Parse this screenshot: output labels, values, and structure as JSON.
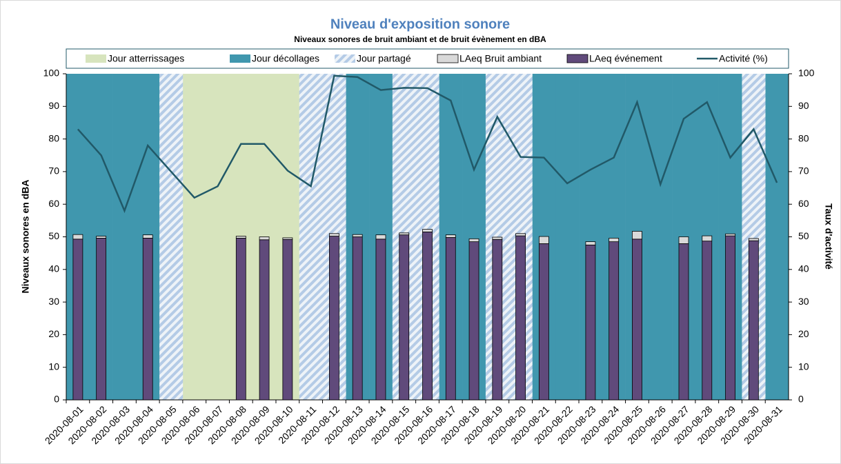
{
  "chart_data": {
    "type": "bar",
    "title": "Niveau d'exposition sonore",
    "subtitle": "Niveaux sonores de bruit ambiant et de bruit évènement en dBA",
    "y_label": "Niveaux sonores en dBA",
    "y2_label": "Taux d'activité",
    "categories": [
      "2020-08-01",
      "2020-08-02",
      "2020-08-03",
      "2020-08-04",
      "2020-08-05",
      "2020-08-06",
      "2020-08-07",
      "2020-08-08",
      "2020-08-09",
      "2020-08-10",
      "2020-08-11",
      "2020-08-12",
      "2020-08-13",
      "2020-08-14",
      "2020-08-15",
      "2020-08-16",
      "2020-08-17",
      "2020-08-18",
      "2020-08-19",
      "2020-08-20",
      "2020-08-21",
      "2020-08-22",
      "2020-08-23",
      "2020-08-24",
      "2020-08-25",
      "2020-08-26",
      "2020-08-27",
      "2020-08-28",
      "2020-08-29",
      "2020-08-30",
      "2020-08-31"
    ],
    "ylim": [
      0,
      100
    ],
    "yticks": [
      0,
      10,
      20,
      30,
      40,
      50,
      60,
      70,
      80,
      90,
      100
    ],
    "y2lim": [
      0,
      100
    ],
    "y2ticks": [
      0,
      10,
      20,
      30,
      40,
      50,
      60,
      70,
      80,
      90,
      100
    ],
    "series": [
      {
        "name": "Jour atterrissages",
        "role": "background",
        "color": "#d7e4bd",
        "values": [
          null,
          null,
          null,
          null,
          null,
          100,
          100,
          100,
          100,
          100,
          null,
          null,
          null,
          null,
          null,
          null,
          null,
          null,
          null,
          null,
          null,
          null,
          null,
          null,
          null,
          null,
          null,
          null,
          null,
          null,
          null
        ]
      },
      {
        "name": "Jour décollages",
        "role": "background",
        "color": "#4097ae",
        "values": [
          100,
          100,
          100,
          100,
          null,
          null,
          null,
          null,
          null,
          null,
          null,
          null,
          100,
          100,
          null,
          null,
          100,
          100,
          null,
          null,
          100,
          100,
          100,
          100,
          100,
          100,
          100,
          100,
          100,
          null,
          100
        ]
      },
      {
        "name": "Jour partagé",
        "role": "background",
        "pattern": "stripes",
        "color": "#b4cbe6",
        "values": [
          null,
          null,
          null,
          null,
          100,
          null,
          null,
          null,
          null,
          null,
          100,
          100,
          null,
          null,
          100,
          100,
          null,
          null,
          100,
          100,
          null,
          null,
          null,
          null,
          null,
          null,
          null,
          null,
          null,
          100,
          null
        ]
      },
      {
        "name": "LAeq Bruit ambiant",
        "role": "stack",
        "color": "#d9d9d9",
        "values": [
          1.4,
          0.6,
          null,
          1.0,
          null,
          null,
          null,
          0.6,
          0.9,
          0.5,
          null,
          0.8,
          0.7,
          1.3,
          0.6,
          0.8,
          0.8,
          0.9,
          0.7,
          0.7,
          2.2,
          null,
          1.0,
          1.1,
          2.4,
          null,
          2.1,
          1.6,
          0.6,
          0.7,
          null
        ]
      },
      {
        "name": "LAeq événement",
        "role": "base",
        "color": "#604a7b",
        "values": [
          49.3,
          49.6,
          null,
          49.6,
          null,
          null,
          null,
          49.6,
          49.1,
          49.2,
          null,
          50.2,
          50.0,
          49.3,
          50.6,
          51.5,
          49.8,
          48.5,
          49.2,
          50.3,
          47.9,
          null,
          47.5,
          48.5,
          49.3,
          null,
          47.9,
          48.7,
          50.3,
          48.8,
          null
        ]
      },
      {
        "name": "Activité (%)",
        "role": "line",
        "axis": "y2",
        "color": "#215968",
        "values": [
          83,
          75,
          58,
          78,
          70,
          62,
          65.5,
          78.5,
          78.5,
          70.3,
          65.5,
          99.4,
          99,
          95,
          95.7,
          95.6,
          91.8,
          70.6,
          86.8,
          74.5,
          74.3,
          66.4,
          70.6,
          74.3,
          91.3,
          66.1,
          86.2,
          91.3,
          74.3,
          83,
          66.6
        ]
      }
    ]
  }
}
